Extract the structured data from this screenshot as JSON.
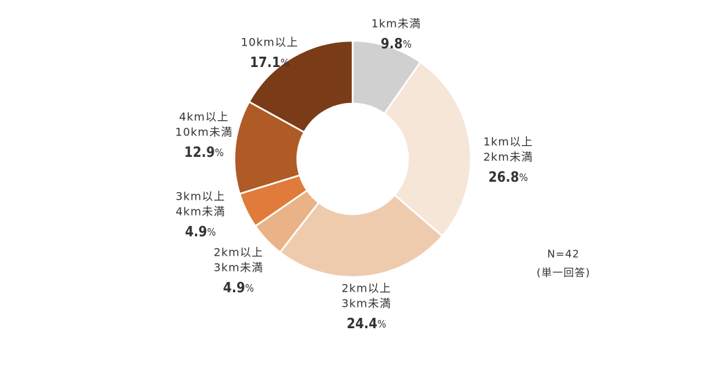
{
  "chart_data": {
    "type": "donut",
    "categories": [
      [
        "1km未満"
      ],
      [
        "1km以上",
        "2km未満"
      ],
      [
        "2km以上",
        "3km未満"
      ],
      [
        "2km以上",
        "3km未満"
      ],
      [
        "3km以上",
        "4km未満"
      ],
      [
        "4km以上",
        "10km未満"
      ],
      [
        "10km以上"
      ]
    ],
    "values": [
      9.8,
      26.8,
      24.4,
      4.9,
      4.9,
      12.9,
      17.1
    ],
    "value_labels": [
      "9.8%",
      "26.8%",
      "24.4%",
      "4.9%",
      "4.9%",
      "12.9%",
      "17.1%"
    ],
    "colors": [
      "#d1d0d0",
      "#f6e6d8",
      "#efcbae",
      "#e9b287",
      "#e07b3c",
      "#b05a26",
      "#7a3b17"
    ],
    "annotations": [
      "N=42",
      "(単一回答)"
    ]
  }
}
